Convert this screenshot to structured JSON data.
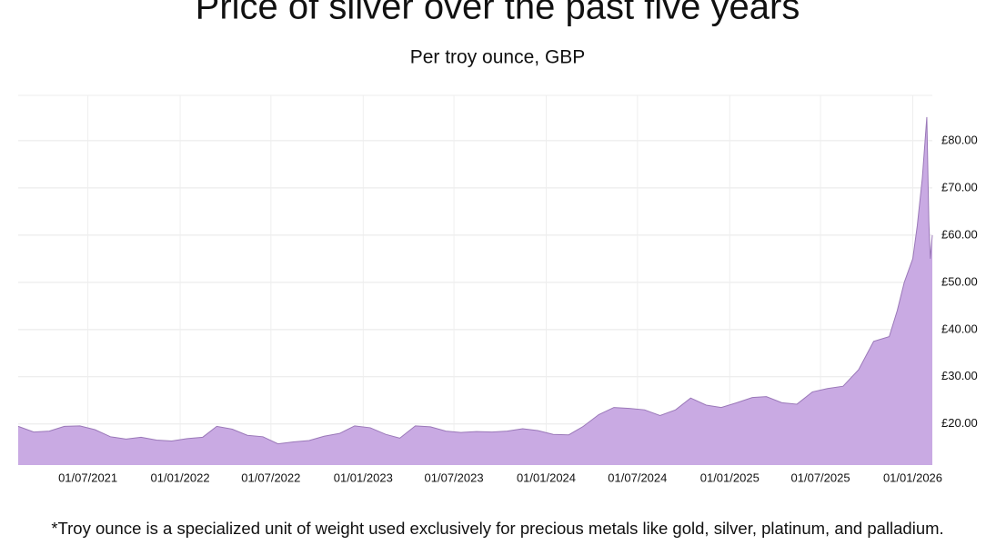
{
  "chart_data": {
    "type": "area",
    "title": "Price of silver over the past five years",
    "subtitle": "Per troy ounce, GBP",
    "footnote": "*Troy ounce is a specialized unit of weight used exclusively for precious metals like gold, silver, platinum, and palladium.",
    "color": "#c9aae3",
    "line_color": "#9a78b8",
    "grid": true,
    "x": [
      "2021-02-12",
      "2021-03-15",
      "2021-04-15",
      "2021-05-15",
      "2021-06-15",
      "2021-07-15",
      "2021-08-15",
      "2021-09-15",
      "2021-10-15",
      "2021-11-15",
      "2021-12-15",
      "2022-01-15",
      "2022-02-15",
      "2022-03-15",
      "2022-04-15",
      "2022-05-15",
      "2022-06-15",
      "2022-07-15",
      "2022-08-15",
      "2022-09-15",
      "2022-10-15",
      "2022-11-15",
      "2022-12-15",
      "2023-01-15",
      "2023-02-15",
      "2023-03-15",
      "2023-04-15",
      "2023-05-15",
      "2023-06-15",
      "2023-07-15",
      "2023-08-15",
      "2023-09-15",
      "2023-10-15",
      "2023-11-15",
      "2023-12-15",
      "2024-01-15",
      "2024-02-15",
      "2024-03-15",
      "2024-04-15",
      "2024-05-15",
      "2024-06-15",
      "2024-07-15",
      "2024-08-15",
      "2024-09-15",
      "2024-10-15",
      "2024-11-15",
      "2024-12-15",
      "2025-01-15",
      "2025-02-15",
      "2025-03-15",
      "2025-04-15",
      "2025-05-15",
      "2025-06-15",
      "2025-07-15",
      "2025-08-15",
      "2025-09-15",
      "2025-10-15",
      "2025-11-15",
      "2025-12-01",
      "2025-12-15",
      "2026-01-01",
      "2026-01-10",
      "2026-01-20",
      "2026-01-29",
      "2026-02-02",
      "2026-02-05",
      "2026-02-09"
    ],
    "values": [
      19.5,
      18.3,
      18.5,
      19.5,
      19.6,
      18.8,
      17.3,
      16.8,
      17.2,
      16.6,
      16.4,
      16.9,
      17.2,
      19.5,
      18.9,
      17.6,
      17.3,
      15.8,
      16.2,
      16.5,
      17.4,
      18.0,
      19.6,
      19.2,
      17.8,
      17.0,
      19.6,
      19.4,
      18.5,
      18.2,
      18.4,
      18.3,
      18.5,
      19.0,
      18.6,
      17.8,
      17.7,
      19.5,
      22.0,
      23.5,
      23.3,
      23.0,
      21.8,
      23.0,
      25.5,
      24.0,
      23.5,
      24.5,
      25.6,
      25.8,
      24.5,
      24.2,
      26.8,
      27.5,
      28.0,
      31.5,
      37.5,
      38.5,
      44.0,
      50.0,
      55.0,
      62.0,
      72.0,
      85.0,
      63.0,
      55.0,
      60.0
    ],
    "xlim": [
      "2021-02-12",
      "2026-02-09"
    ],
    "xticks": [
      {
        "value": "2021-07-01",
        "label": "01/07/2021"
      },
      {
        "value": "2022-01-01",
        "label": "01/01/2022"
      },
      {
        "value": "2022-07-01",
        "label": "01/07/2022"
      },
      {
        "value": "2023-01-01",
        "label": "01/01/2023"
      },
      {
        "value": "2023-07-01",
        "label": "01/07/2023"
      },
      {
        "value": "2024-01-01",
        "label": "01/01/2024"
      },
      {
        "value": "2024-07-01",
        "label": "01/07/2024"
      },
      {
        "value": "2025-01-01",
        "label": "01/01/2025"
      },
      {
        "value": "2025-07-01",
        "label": "01/07/2025"
      },
      {
        "value": "2026-01-01",
        "label": "01/01/2026"
      }
    ],
    "ylim": [
      11.3,
      89.6
    ],
    "yticks": [
      {
        "value": 20,
        "label": "£20.00"
      },
      {
        "value": 30,
        "label": "£30.00"
      },
      {
        "value": 40,
        "label": "£40.00"
      },
      {
        "value": 50,
        "label": "£50.00"
      },
      {
        "value": 60,
        "label": "£60.00"
      },
      {
        "value": 70,
        "label": "£70.00"
      },
      {
        "value": 80,
        "label": "£80.00"
      }
    ]
  }
}
